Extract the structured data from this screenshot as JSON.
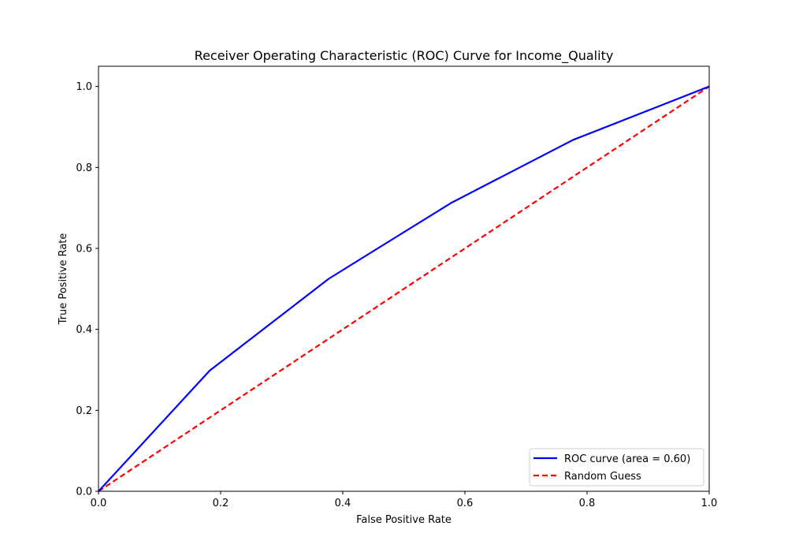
{
  "chart_data": {
    "type": "line",
    "title": "Receiver Operating Characteristic (ROC) Curve for Income_Quality",
    "xlabel": "False Positive Rate",
    "ylabel": "True Positive Rate",
    "xlim": [
      0.0,
      1.0
    ],
    "ylim": [
      0.0,
      1.05
    ],
    "xticks": [
      "0.0",
      "0.2",
      "0.4",
      "0.6",
      "0.8",
      "1.0"
    ],
    "yticks": [
      "0.0",
      "0.2",
      "0.4",
      "0.6",
      "0.8",
      "1.0"
    ],
    "grid": false,
    "legend_position": "lower-right",
    "series": [
      {
        "name": "ROC curve (area = 0.60)",
        "color": "#0000ff",
        "style": "solid",
        "x": [
          0.0,
          0.182,
          0.377,
          0.577,
          0.777,
          1.0
        ],
        "y": [
          0.0,
          0.298,
          0.525,
          0.712,
          0.868,
          1.0
        ]
      },
      {
        "name": "Random Guess",
        "color": "#ff0000",
        "style": "dashed",
        "x": [
          0.0,
          1.0
        ],
        "y": [
          0.0,
          1.0
        ]
      }
    ]
  }
}
